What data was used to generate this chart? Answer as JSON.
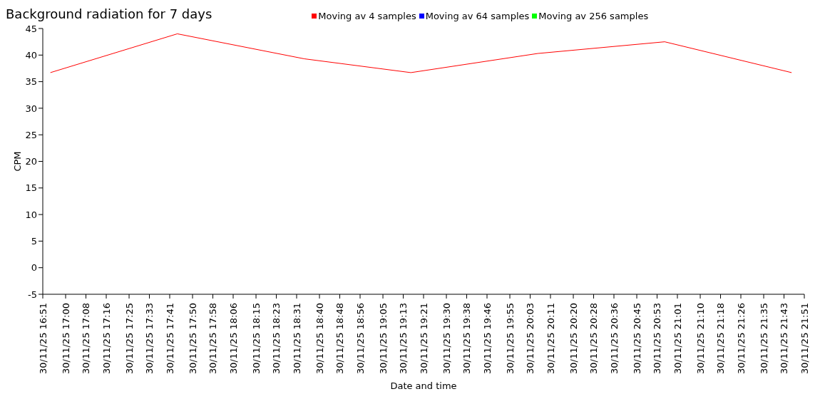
{
  "chart_data": {
    "type": "line",
    "title": "Background radiation for 7 days",
    "xlabel": "Date and time",
    "ylabel": "CPM",
    "legend": "top",
    "marker": "none",
    "line_style": "solid",
    "x": [
      "--11-30T16:54",
      "--11-30T17:44",
      "--11-30T18:34",
      "--11-30T19:16",
      "--11-30T20:06",
      "--11-30T20:56",
      "--11-30T21:46"
    ],
    "series": [
      {
        "name": "Moving av 4 samples",
        "color": "#ff0000",
        "values": [
          36.7,
          44,
          39.3,
          36.7,
          40.3,
          42.5,
          36.7
        ]
      },
      {
        "name": "Moving av 64 samples",
        "color": "#0000ff",
        "values": [
          null,
          null,
          null,
          null,
          null,
          null,
          null
        ]
      },
      {
        "name": "Moving av 256 samples",
        "color": "#00ff00",
        "values": [
          null,
          null,
          null,
          null,
          null,
          null,
          null
        ]
      }
    ],
    "ylim": [
      -5,
      45
    ],
    "yticks": [
      -5,
      0,
      5,
      10,
      15,
      20,
      25,
      30,
      35,
      40,
      45
    ],
    "xlim": [
      "--11-30T16:51",
      "--11-30T21:51"
    ],
    "xticks": [
      {
        "value": "--11-30T16:51",
        "label": "30/11/25 16:51"
      },
      {
        "value": "--11-30T17:00",
        "label": "30/11/25 17:00"
      },
      {
        "value": "--11-30T17:08",
        "label": "30/11/25 17:08"
      },
      {
        "value": "--11-30T17:16",
        "label": "30/11/25 17:16"
      },
      {
        "value": "--11-30T17:25",
        "label": "30/11/25 17:25"
      },
      {
        "value": "--11-30T17:33",
        "label": "30/11/25 17:33"
      },
      {
        "value": "--11-30T17:41",
        "label": "30/11/25 17:41"
      },
      {
        "value": "--11-30T17:50",
        "label": "30/11/25 17:50"
      },
      {
        "value": "--11-30T17:58",
        "label": "30/11/25 17:58"
      },
      {
        "value": "--11-30T18:06",
        "label": "30/11/25 18:06"
      },
      {
        "value": "--11-30T18:15",
        "label": "30/11/25 18:15"
      },
      {
        "value": "--11-30T18:23",
        "label": "30/11/25 18:23"
      },
      {
        "value": "--11-30T18:31",
        "label": "30/11/25 18:31"
      },
      {
        "value": "--11-30T18:40",
        "label": "30/11/25 18:40"
      },
      {
        "value": "--11-30T18:48",
        "label": "30/11/25 18:48"
      },
      {
        "value": "--11-30T18:56",
        "label": "30/11/25 18:56"
      },
      {
        "value": "--11-30T19:05",
        "label": "30/11/25 19:05"
      },
      {
        "value": "--11-30T19:13",
        "label": "30/11/25 19:13"
      },
      {
        "value": "--11-30T19:21",
        "label": "30/11/25 19:21"
      },
      {
        "value": "--11-30T19:30",
        "label": "30/11/25 19:30"
      },
      {
        "value": "--11-30T19:38",
        "label": "30/11/25 19:38"
      },
      {
        "value": "--11-30T19:46",
        "label": "30/11/25 19:46"
      },
      {
        "value": "--11-30T19:55",
        "label": "30/11/25 19:55"
      },
      {
        "value": "--11-30T20:03",
        "label": "30/11/25 20:03"
      },
      {
        "value": "--11-30T20:11",
        "label": "30/11/25 20:11"
      },
      {
        "value": "--11-30T20:20",
        "label": "30/11/25 20:20"
      },
      {
        "value": "--11-30T20:28",
        "label": "30/11/25 20:28"
      },
      {
        "value": "--11-30T20:36",
        "label": "30/11/25 20:36"
      },
      {
        "value": "--11-30T20:45",
        "label": "30/11/25 20:45"
      },
      {
        "value": "--11-30T20:53",
        "label": "30/11/25 20:53"
      },
      {
        "value": "--11-30T21:01",
        "label": "30/11/25 21:01"
      },
      {
        "value": "--11-30T21:10",
        "label": "30/11/25 21:10"
      },
      {
        "value": "--11-30T21:18",
        "label": "30/11/25 21:18"
      },
      {
        "value": "--11-30T21:26",
        "label": "30/11/25 21:26"
      },
      {
        "value": "--11-30T21:35",
        "label": "30/11/25 21:35"
      },
      {
        "value": "--11-30T21:43",
        "label": "30/11/25 21:43"
      },
      {
        "value": "--11-30T21:51",
        "label": "30/11/25 21:51"
      }
    ]
  }
}
